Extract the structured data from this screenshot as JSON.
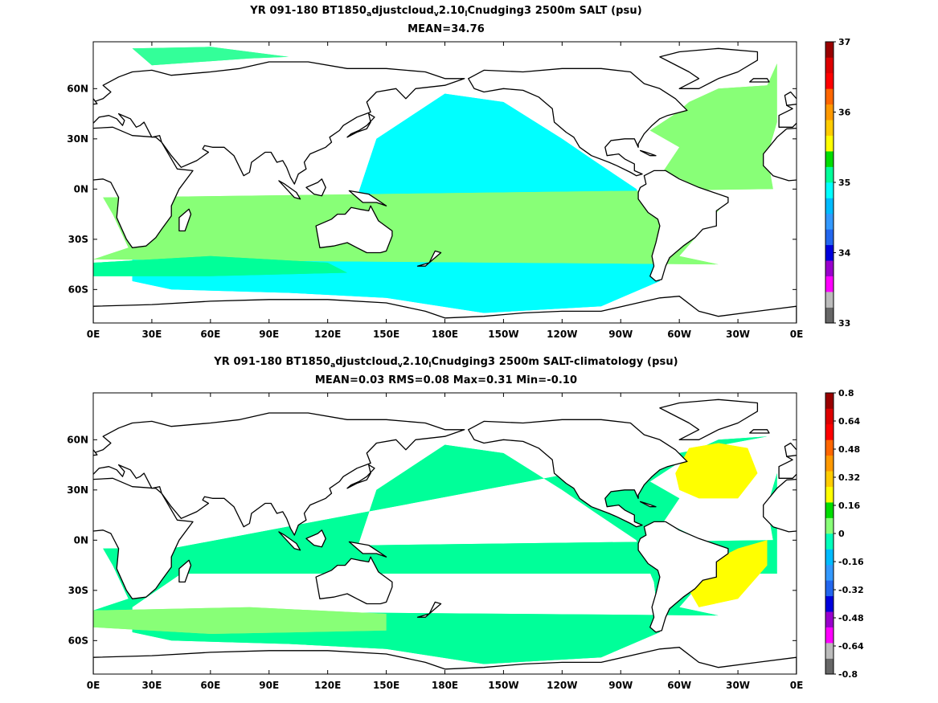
{
  "chart_data": [
    {
      "type": "heatmap",
      "title_parts": [
        "YR 091-180 BT1850",
        "a",
        "djustcloud",
        "v",
        "2.10",
        "l",
        "Cnudging3 2500m SALT (psu)"
      ],
      "subtitle": "MEAN=34.76",
      "x_ticks": [
        "0E",
        "30E",
        "60E",
        "90E",
        "120E",
        "150E",
        "180E",
        "150W",
        "120W",
        "90W",
        "60W",
        "30W",
        "0E"
      ],
      "x_values": [
        0,
        30,
        60,
        90,
        120,
        150,
        180,
        210,
        240,
        270,
        300,
        330,
        360
      ],
      "xlim": [
        0,
        360
      ],
      "y_ticks": [
        "60N",
        "30N",
        "0N",
        "30S",
        "60S"
      ],
      "y_values": [
        60,
        30,
        0,
        -30,
        -60
      ],
      "ylim": [
        -80,
        88
      ],
      "colorbar": {
        "labels": [
          "37",
          "36",
          "35",
          "34",
          "33"
        ],
        "label_values": [
          37,
          36,
          35,
          34,
          33
        ],
        "range": [
          33,
          37
        ],
        "colors": [
          "#666666",
          "#bbbbbb",
          "#ff00ff",
          "#9900cc",
          "#0000dd",
          "#2266ee",
          "#3399ff",
          "#00bbff",
          "#00ffff",
          "#00ff99",
          "#00dd00",
          "#ffff00",
          "#ffcc00",
          "#ff9900",
          "#ff6600",
          "#ff0000",
          "#dd0000",
          "#990000"
        ]
      },
      "regions": {
        "pacific_indian": {
          "value": 34.7,
          "color": "#00ffff"
        },
        "atlantic": {
          "value": 35.1,
          "color": "#88ff77"
        },
        "southern_band": {
          "value": 34.8,
          "color": "#00ff99"
        },
        "arctic": {
          "value": 34.9,
          "color": "#33ff99"
        }
      }
    },
    {
      "type": "heatmap",
      "title_parts": [
        "YR 091-180 BT1850",
        "a",
        "djustcloud",
        "v",
        "2.10",
        "l",
        "Cnudging3 2500m SALT-climatology (psu)"
      ],
      "subtitle": "MEAN=0.03   RMS=0.08   Max=0.31   Min=-0.10",
      "x_ticks": [
        "0E",
        "30E",
        "60E",
        "90E",
        "120E",
        "150E",
        "180E",
        "150W",
        "120W",
        "90W",
        "60W",
        "30W",
        "0E"
      ],
      "x_values": [
        0,
        30,
        60,
        90,
        120,
        150,
        180,
        210,
        240,
        270,
        300,
        330,
        360
      ],
      "xlim": [
        0,
        360
      ],
      "y_ticks": [
        "60N",
        "30N",
        "0N",
        "30S",
        "60S"
      ],
      "y_values": [
        60,
        30,
        0,
        -30,
        -60
      ],
      "ylim": [
        -80,
        88
      ],
      "colorbar": {
        "labels": [
          "0.8",
          "0.64",
          "0.48",
          "0.32",
          "0.16",
          "0",
          "-0.16",
          "-0.32",
          "-0.48",
          "-0.64",
          "-0.8"
        ],
        "label_values": [
          0.8,
          0.64,
          0.48,
          0.32,
          0.16,
          0,
          -0.16,
          -0.32,
          -0.48,
          -0.64,
          -0.8
        ],
        "range": [
          -0.8,
          0.8
        ],
        "colors": [
          "#666666",
          "#bbbbbb",
          "#ff00ff",
          "#9900cc",
          "#0000dd",
          "#2266ee",
          "#3399ff",
          "#00bbff",
          "#00ffbb",
          "#88ff77",
          "#00dd00",
          "#ffff00",
          "#ffcc00",
          "#ff9900",
          "#ff6600",
          "#ff0000",
          "#dd0000",
          "#990000"
        ]
      },
      "regions": {
        "pacific_indian": {
          "value": 0.02,
          "color": "#00ff99"
        },
        "southern_band": {
          "value": 0.1,
          "color": "#88ff77"
        },
        "north_atlantic": {
          "value": 0.25,
          "color": "#ffff00"
        },
        "south_atlantic": {
          "value": 0.2,
          "color": "#ffff00"
        }
      }
    }
  ]
}
